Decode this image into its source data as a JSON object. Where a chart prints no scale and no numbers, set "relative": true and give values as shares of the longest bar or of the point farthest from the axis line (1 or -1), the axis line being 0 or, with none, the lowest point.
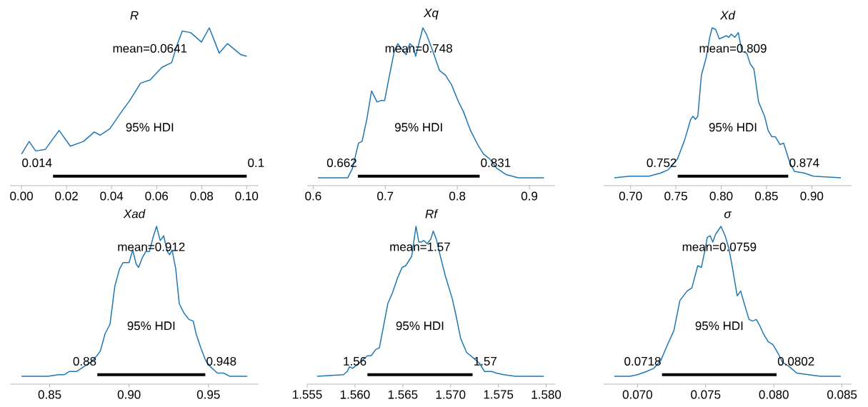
{
  "chart_data": [
    {
      "type": "line",
      "title": "R",
      "relative": true,
      "xlim": [
        -0.0051,
        0.1053
      ],
      "xticks": [
        {
          "value": 0,
          "label": "0.00"
        },
        {
          "value": 0.02,
          "label": "0.02"
        },
        {
          "value": 0.04,
          "label": "0.04"
        },
        {
          "value": 0.06,
          "label": "0.06"
        },
        {
          "value": 0.08,
          "label": "0.08"
        },
        {
          "value": 0.1,
          "label": "0.10"
        }
      ],
      "x": [
        0,
        0.0034,
        0.0063,
        0.0106,
        0.0167,
        0.0217,
        0.0275,
        0.0323,
        0.0349,
        0.0392,
        0.045,
        0.0481,
        0.0529,
        0.0571,
        0.0624,
        0.0667,
        0.0688,
        0.0714,
        0.0751,
        0.0799,
        0.0834,
        0.0878,
        0.0915,
        0.0974,
        0.1
      ],
      "series": [
        {
          "color": "#1f77b4",
          "values": [
            0.2,
            0.28,
            0.22,
            0.23,
            0.35,
            0.25,
            0.28,
            0.34,
            0.32,
            0.36,
            0.48,
            0.54,
            0.65,
            0.67,
            0.75,
            0.78,
            0.88,
            0.98,
            0.97,
            0.91,
            1,
            0.84,
            0.9,
            0.83,
            0.82
          ]
        },
        {
          "type": "line",
          "color": "#000000",
          "x": [
            0.014,
            0.1
          ],
          "values": [
            0.06,
            0.06
          ]
        }
      ],
      "annotations": [
        "mean=0.0641",
        "95% HDI",
        "0.014",
        "0.1"
      ]
    },
    {
      "type": "line",
      "title": "Xq",
      "relative": true,
      "xlim": [
        0.5917,
        0.9357
      ],
      "xticks": [
        0.6,
        0.7,
        0.8,
        0.9
      ],
      "x": [
        0.6066,
        0.6364,
        0.648,
        0.6546,
        0.6629,
        0.6678,
        0.6744,
        0.681,
        0.6887,
        0.6943,
        0.6992,
        0.7059,
        0.7125,
        0.7174,
        0.724,
        0.729,
        0.734,
        0.7389,
        0.7422,
        0.7472,
        0.7522,
        0.7571,
        0.7654,
        0.7753,
        0.7836,
        0.7919,
        0.8018,
        0.8084,
        0.8183,
        0.8283,
        0.8365,
        0.8448,
        0.8547,
        0.8679,
        0.8845,
        0.9202
      ],
      "series": [
        {
          "color": "#1f77b4",
          "values": [
            0.05,
            0.05,
            0.05,
            0.11,
            0.27,
            0.28,
            0.42,
            0.6,
            0.53,
            0.54,
            0.54,
            0.7,
            0.85,
            0.9,
            0.86,
            0.83,
            0.9,
            0.88,
            0.82,
            0.91,
            1,
            0.96,
            0.86,
            0.73,
            0.7,
            0.64,
            0.53,
            0.47,
            0.35,
            0.26,
            0.2,
            0.17,
            0.11,
            0.07,
            0.05,
            0.05
          ]
        },
        {
          "type": "line",
          "color": "#000000",
          "x": [
            0.662,
            0.831
          ],
          "values": [
            0.06,
            0.06
          ]
        }
      ],
      "annotations": [
        "mean=0.748",
        "95% HDI",
        "0.662",
        "0.831"
      ]
    },
    {
      "type": "line",
      "title": "Xd",
      "relative": true,
      "xlim": [
        0.6703,
        0.9439
      ],
      "xticks": [
        {
          "value": 0.7,
          "label": "0.70"
        },
        {
          "value": 0.75,
          "label": "0.75"
        },
        {
          "value": 0.8,
          "label": "0.80"
        },
        {
          "value": 0.85,
          "label": "0.85"
        },
        {
          "value": 0.9,
          "label": "0.90"
        }
      ],
      "x": [
        0.6821,
        0.6992,
        0.7203,
        0.7334,
        0.7413,
        0.7518,
        0.7597,
        0.7663,
        0.7689,
        0.7716,
        0.7742,
        0.7782,
        0.7834,
        0.7874,
        0.79,
        0.7939,
        0.7979,
        0.8018,
        0.8058,
        0.8084,
        0.8111,
        0.815,
        0.8189,
        0.8229,
        0.8282,
        0.8321,
        0.8361,
        0.8413,
        0.8479,
        0.8518,
        0.8558,
        0.8597,
        0.865,
        0.8689,
        0.8755,
        0.8808,
        0.8913,
        0.9018,
        0.9321
      ],
      "series": [
        {
          "color": "#1f77b4",
          "values": [
            0.05,
            0.06,
            0.06,
            0.08,
            0.1,
            0.17,
            0.29,
            0.42,
            0.44,
            0.42,
            0.44,
            0.7,
            0.81,
            0.94,
            1,
            0.99,
            0.93,
            0.94,
            0.95,
            0.94,
            0.96,
            0.94,
            0.97,
            0.85,
            0.84,
            0.77,
            0.74,
            0.53,
            0.44,
            0.35,
            0.31,
            0.31,
            0.26,
            0.27,
            0.15,
            0.09,
            0.08,
            0.06,
            0.05
          ]
        },
        {
          "type": "line",
          "color": "#000000",
          "x": [
            0.752,
            0.874
          ],
          "values": [
            0.06,
            0.06
          ]
        }
      ],
      "annotations": [
        "mean=0.809",
        "95% HDI",
        "0.752",
        "0.874"
      ]
    },
    {
      "type": "line",
      "title": "Xad",
      "relative": true,
      "xlim": [
        0.825,
        0.9816
      ],
      "xticks": [
        {
          "value": 0.85,
          "label": "0.85"
        },
        {
          "value": 0.9,
          "label": "0.90"
        },
        {
          "value": 0.95,
          "label": "0.95"
        }
      ],
      "x": [
        0.8322,
        0.8488,
        0.8556,
        0.8593,
        0.8623,
        0.8669,
        0.8714,
        0.8759,
        0.8797,
        0.8819,
        0.8849,
        0.888,
        0.8895,
        0.891,
        0.894,
        0.8962,
        0.9,
        0.9023,
        0.9045,
        0.906,
        0.9083,
        0.9105,
        0.9128,
        0.9151,
        0.9173,
        0.9196,
        0.9218,
        0.9241,
        0.9256,
        0.9271,
        0.9294,
        0.9316,
        0.9346,
        0.9377,
        0.9404,
        0.9422,
        0.9452,
        0.9482,
        0.9512,
        0.9557,
        0.9595,
        0.9633,
        0.9745
      ],
      "series": [
        {
          "color": "#1f77b4",
          "values": [
            0.05,
            0.05,
            0.06,
            0.06,
            0.08,
            0.08,
            0.11,
            0.14,
            0.18,
            0.21,
            0.32,
            0.38,
            0.5,
            0.62,
            0.73,
            0.77,
            0.77,
            0.85,
            0.76,
            0.74,
            0.8,
            0.84,
            0.84,
            0.93,
            1,
            0.91,
            0.94,
            0.84,
            0.82,
            0.85,
            0.73,
            0.51,
            0.45,
            0.41,
            0.4,
            0.32,
            0.23,
            0.15,
            0.11,
            0.07,
            0.07,
            0.05,
            0.05
          ]
        },
        {
          "type": "line",
          "color": "#000000",
          "x": [
            0.88,
            0.948
          ],
          "values": [
            0.06,
            0.06
          ]
        }
      ],
      "annotations": [
        "mean=0.912",
        "95% HDI",
        "0.88",
        "0.948"
      ]
    },
    {
      "type": "line",
      "title": "Rf",
      "relative": true,
      "xlim": [
        1.555,
        1.58093
      ],
      "xticks": [
        {
          "value": 1.555,
          "label": "1.555"
        },
        {
          "value": 1.56,
          "label": "1.560"
        },
        {
          "value": 1.565,
          "label": "1.565"
        },
        {
          "value": 1.57,
          "label": "1.570"
        },
        {
          "value": 1.575,
          "label": "1.575"
        },
        {
          "value": 1.58,
          "label": "1.580"
        }
      ],
      "x": [
        1.55605,
        1.5588,
        1.55918,
        1.55943,
        1.55975,
        1.56055,
        1.5613,
        1.56168,
        1.56218,
        1.56255,
        1.56293,
        1.56343,
        1.56393,
        1.56443,
        1.56493,
        1.5653,
        1.56593,
        1.56638,
        1.56668,
        1.56693,
        1.56718,
        1.56755,
        1.56793,
        1.56818,
        1.5685,
        1.56885,
        1.56943,
        1.57018,
        1.57055,
        1.57105,
        1.57168,
        1.5723,
        1.57305,
        1.57355,
        1.5743,
        1.5748,
        1.57555,
        1.5768,
        1.57975
      ],
      "series": [
        {
          "color": "#1f77b4",
          "values": [
            0.05,
            0.06,
            0.08,
            0.11,
            0.1,
            0.14,
            0.18,
            0.18,
            0.22,
            0.23,
            0.35,
            0.51,
            0.58,
            0.67,
            0.74,
            0.75,
            0.81,
            1,
            0.9,
            0.9,
            0.91,
            0.89,
            0.92,
            0.97,
            0.92,
            0.83,
            0.69,
            0.54,
            0.44,
            0.29,
            0.2,
            0.17,
            0.13,
            0.08,
            0.08,
            0.07,
            0.06,
            0.05,
            0.05
          ]
        },
        {
          "type": "line",
          "color": "#000000",
          "x": [
            1.5613,
            1.5723
          ],
          "values": [
            0.06,
            0.06
          ]
        }
      ],
      "annotations": [
        "mean=1.57",
        "95% HDI",
        "1.56",
        "1.57"
      ]
    },
    {
      "type": "line",
      "title": "σ",
      "relative": true,
      "xlim": [
        0.06752,
        0.0857
      ],
      "xticks": [
        {
          "value": 0.07,
          "label": "0.070"
        },
        {
          "value": 0.075,
          "label": "0.075"
        },
        {
          "value": 0.08,
          "label": "0.080"
        },
        {
          "value": 0.085,
          "label": "0.085"
        }
      ],
      "x": [
        0.0683,
        0.06944,
        0.07,
        0.07066,
        0.07119,
        0.07171,
        0.07215,
        0.07267,
        0.07311,
        0.07364,
        0.07399,
        0.07442,
        0.07469,
        0.07495,
        0.07512,
        0.07533,
        0.07552,
        0.07573,
        0.07612,
        0.07643,
        0.0767,
        0.07696,
        0.07731,
        0.07757,
        0.07783,
        0.07818,
        0.07844,
        0.07871,
        0.07897,
        0.07923,
        0.07958,
        0.07993,
        0.08028,
        0.08063,
        0.08115,
        0.08168,
        0.08255,
        0.08343,
        0.08491
      ],
      "series": [
        {
          "color": "#1f77b4",
          "values": [
            0.05,
            0.05,
            0.06,
            0.08,
            0.1,
            0.15,
            0.24,
            0.34,
            0.53,
            0.59,
            0.61,
            0.75,
            0.74,
            0.85,
            0.93,
            0.94,
            0.9,
            0.95,
            1,
            0.94,
            0.86,
            0.74,
            0.56,
            0.59,
            0.51,
            0.41,
            0.4,
            0.41,
            0.37,
            0.32,
            0.27,
            0.25,
            0.2,
            0.14,
            0.11,
            0.07,
            0.06,
            0.05,
            0.05
          ]
        },
        {
          "type": "line",
          "color": "#000000",
          "x": [
            0.0718,
            0.0802
          ],
          "values": [
            0.06,
            0.06
          ]
        }
      ],
      "annotations": [
        "mean=0.0759",
        "95% HDI",
        "0.0718",
        "0.0802"
      ]
    }
  ]
}
